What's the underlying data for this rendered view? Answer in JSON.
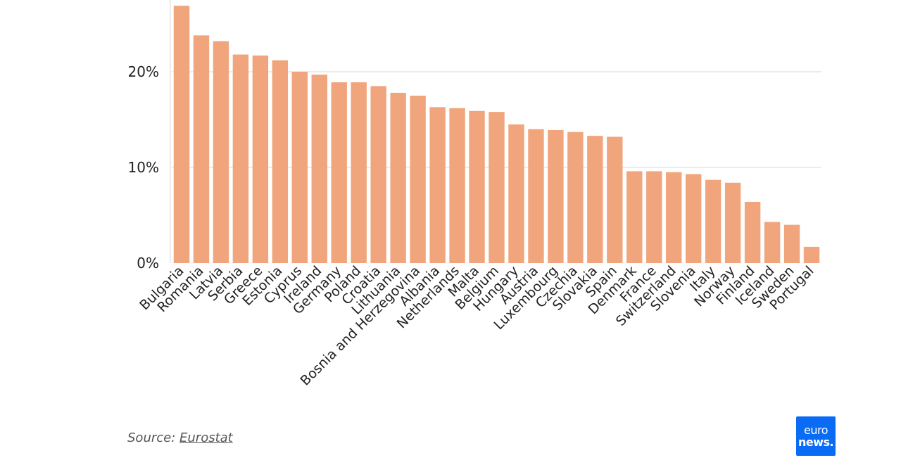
{
  "chart_data": {
    "type": "bar",
    "categories": [
      "Bulgaria",
      "Romania",
      "Latvia",
      "Serbia",
      "Greece",
      "Estonia",
      "Cyprus",
      "Ireland",
      "Germany",
      "Poland",
      "Croatia",
      "Lithuania",
      "Bosnia and Herzegovina",
      "Albania",
      "Netherlands",
      "Malta",
      "Belgium",
      "Hungary",
      "Austria",
      "Luxembourg",
      "Czechia",
      "Slovakia",
      "Spain",
      "Denmark",
      "France",
      "Switzerland",
      "Slovenia",
      "Italy",
      "Norway",
      "Finland",
      "Iceland",
      "Sweden",
      "Portugal"
    ],
    "values": [
      26.9,
      23.8,
      23.2,
      21.8,
      21.7,
      21.2,
      20.0,
      19.7,
      18.9,
      18.9,
      18.5,
      17.8,
      17.5,
      16.3,
      16.2,
      15.9,
      15.8,
      14.5,
      14.0,
      13.9,
      13.7,
      13.3,
      13.2,
      9.6,
      9.6,
      9.5,
      9.3,
      8.7,
      8.4,
      6.4,
      4.3,
      4.0,
      1.7
    ],
    "yticks": [
      "0%",
      "10%",
      "20%"
    ],
    "ylim": [
      0,
      27.5
    ],
    "grid": true,
    "bar_color": "#f0a57c"
  },
  "footer": {
    "source_prefix": "Source: ",
    "source_link": "Eurostat"
  },
  "logo": {
    "line1": "euro",
    "line2": "news.",
    "color": "#0a6cf5"
  }
}
